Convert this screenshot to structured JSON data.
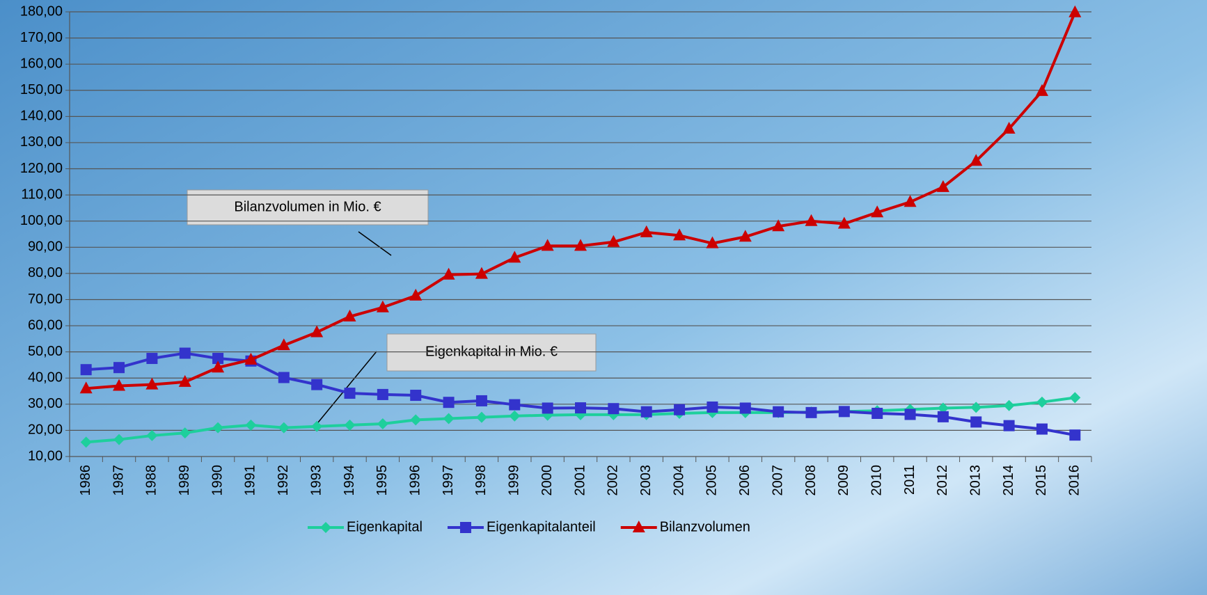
{
  "chart_data": {
    "type": "line",
    "categories": [
      "1986",
      "1987",
      "1988",
      "1989",
      "1990",
      "1991",
      "1992",
      "1993",
      "1994",
      "1995",
      "1996",
      "1997",
      "1998",
      "1999",
      "2000",
      "2001",
      "2002",
      "2003",
      "2004",
      "2005",
      "2006",
      "2007",
      "2008",
      "2009",
      "2010",
      "2011",
      "2012",
      "2013",
      "2014",
      "2015",
      "2016"
    ],
    "series": [
      {
        "name": "Eigenkapital",
        "color": "#1ecf9c",
        "marker": "diamond",
        "values": [
          15.5,
          16.5,
          18,
          19,
          21,
          22,
          21,
          21.5,
          22,
          22.5,
          24,
          24.5,
          25,
          25.5,
          25.8,
          26,
          26,
          26,
          26.5,
          26.8,
          26.8,
          26.8,
          27,
          27.2,
          27.5,
          28,
          28.5,
          28.8,
          29.5,
          30.8,
          32.5
        ]
      },
      {
        "name": "Eigenkapitalanteil",
        "color": "#3333cc",
        "marker": "square",
        "values": [
          43.2,
          44,
          47.5,
          49.5,
          47.5,
          46.5,
          40.2,
          37.5,
          34.2,
          33.7,
          33.4,
          30.7,
          31.3,
          29.8,
          28.5,
          28.6,
          28.3,
          27.1,
          27.9,
          28.9,
          28.5,
          27.1,
          26.8,
          27.2,
          26.5,
          26.1,
          25.2,
          23.2,
          21.8,
          20.5,
          18.2
        ]
      },
      {
        "name": "Bilanzvolumen",
        "color": "#cc0000",
        "marker": "triangle",
        "values": [
          36,
          37,
          37.5,
          38.5,
          44,
          47,
          52.5,
          57.5,
          63.5,
          67,
          71.5,
          79.5,
          79.8,
          86,
          90.5,
          90.5,
          92,
          95.7,
          94.5,
          91.5,
          94,
          98,
          100,
          99,
          103.3,
          107.3,
          113,
          123,
          135.3,
          149.7,
          179.8
        ]
      }
    ],
    "ylim": [
      10,
      180
    ],
    "yticks": [
      {
        "value": 10,
        "label": "10,00"
      },
      {
        "value": 20,
        "label": "20,00"
      },
      {
        "value": 30,
        "label": "30,00"
      },
      {
        "value": 40,
        "label": "40,00"
      },
      {
        "value": 50,
        "label": "50,00"
      },
      {
        "value": 60,
        "label": "60,00"
      },
      {
        "value": 70,
        "label": "70,00"
      },
      {
        "value": 80,
        "label": "80,00"
      },
      {
        "value": 90,
        "label": "90,00"
      },
      {
        "value": 100,
        "label": "100,00"
      },
      {
        "value": 110,
        "label": "110,00"
      },
      {
        "value": 120,
        "label": "120,00"
      },
      {
        "value": 130,
        "label": "130,00"
      },
      {
        "value": 140,
        "label": "140,00"
      },
      {
        "value": 150,
        "label": "150,00"
      },
      {
        "value": 160,
        "label": "160,00"
      },
      {
        "value": 170,
        "label": "170,00"
      },
      {
        "value": 180,
        "label": "180,00"
      }
    ],
    "grid": true,
    "legend": "bottom",
    "annotations": [
      "Bilanzvolumen in Mio. €",
      "Eigenkapital in Mio. €"
    ]
  }
}
